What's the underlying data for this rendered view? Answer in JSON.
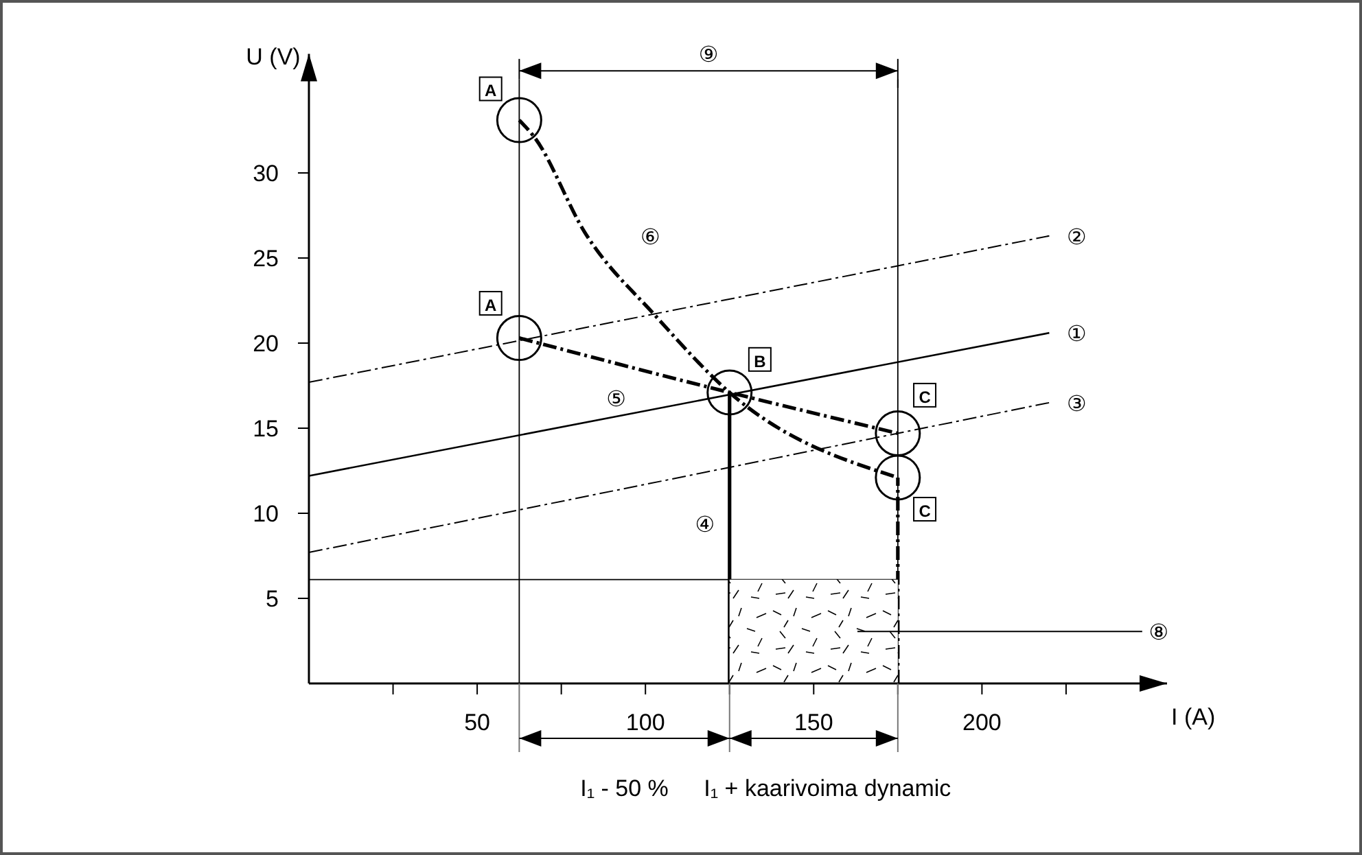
{
  "chart_data": {
    "type": "line",
    "xlabel": "I (A)",
    "ylabel": "U (V)",
    "xlim": [
      0,
      255
    ],
    "ylim": [
      0,
      37
    ],
    "xticks": [
      {
        "value": 25,
        "label": null
      },
      50,
      {
        "value": 75,
        "label": null
      },
      100,
      {
        "value": 125,
        "label": null
      },
      150,
      {
        "value": 175,
        "label": null
      },
      200,
      {
        "value": 225,
        "label": null
      }
    ],
    "yticks": [
      5,
      10,
      15,
      20,
      25,
      30
    ],
    "series": [
      {
        "color": "#000000",
        "line_style": "solid",
        "x": [
          0,
          220
        ],
        "values": [
          12.2,
          20.6
        ]
      },
      {
        "color": "#000000",
        "line_style": "dashed",
        "x": [
          0,
          220
        ],
        "values": [
          17.7,
          26.3
        ]
      },
      {
        "color": "#000000",
        "line_style": "dashed",
        "x": [
          0,
          220
        ],
        "values": [
          7.7,
          16.5
        ]
      },
      {
        "color": "#000000",
        "line_style": "solid",
        "x": [
          125,
          125
        ],
        "values": [
          0,
          17.1
        ]
      },
      {
        "color": "#000000",
        "line_style": "dashed",
        "x": [
          62.5,
          125,
          175
        ],
        "values": [
          20.3,
          17.1,
          14.7
        ]
      },
      {
        "color": "#000000",
        "line_style": "dashed",
        "x": [
          62.5,
          67,
          82,
          103,
          125,
          175
        ],
        "values": [
          33.1,
          32.1,
          26.5,
          21.6,
          17.1,
          12.1
        ]
      },
      {
        "color": "#000000",
        "line_style": "dashed",
        "x": [
          175,
          175
        ],
        "values": [
          0,
          12.1
        ]
      },
      {
        "color": "#000000",
        "line_style": "solid",
        "x": [
          0,
          175
        ],
        "values": [
          6.1,
          6.1
        ]
      },
      {
        "type": "area",
        "color": "#000000",
        "x": [
          125,
          175
        ],
        "values": [
          6.1,
          6.1
        ]
      },
      {
        "type": "scatter",
        "color": "#000000",
        "marker": "circle",
        "x": [
          62.5,
          62.5,
          125,
          175,
          175
        ],
        "values": [
          33.1,
          20.3,
          17.1,
          14.7,
          12.1
        ]
      }
    ],
    "ref_lines": [
      {
        "axis": "x",
        "value": 62.5
      },
      {
        "axis": "x",
        "value": 175
      }
    ],
    "annotations": [
      {
        "text": "A",
        "x": 54,
        "y": 34.9
      },
      {
        "text": "A",
        "x": 54,
        "y": 22.3
      },
      {
        "text": "B",
        "x": 134,
        "y": 19.0
      },
      {
        "text": "C",
        "x": 183,
        "y": 16.9
      },
      {
        "text": "C",
        "x": 183,
        "y": 10.2
      },
      "①",
      "②",
      "③",
      "④",
      "⑤",
      "⑥",
      "⑧",
      "⑨",
      "I₁ - 50 %",
      "I₁ + kaarivoima dynamic"
    ]
  }
}
